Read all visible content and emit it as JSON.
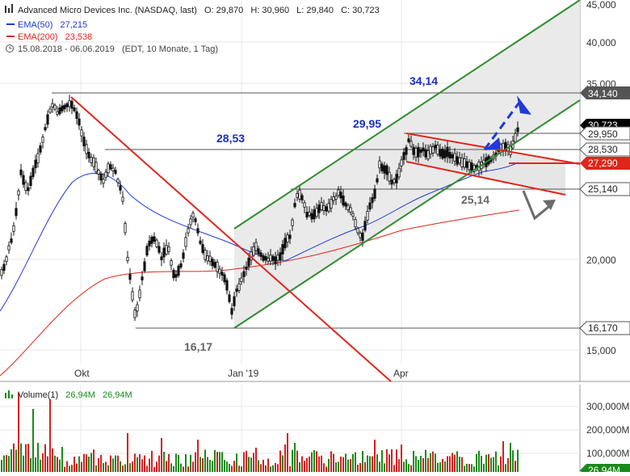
{
  "chart_data": [
    {
      "type": "candlestick",
      "header": {
        "title": "Advanced Micro Devices Inc. (NASDAQ, last)",
        "open": "O: 29,870",
        "high": "H: 30,960",
        "low": "L: 29,840",
        "close": "C: 30,723",
        "ema50_label": "EMA(50)",
        "ema50_value": "27,215",
        "ema200_label": "EMA(200)",
        "ema200_value": "23,538",
        "period": "15.08.2018 - 06.06.2019",
        "period_info": "(EDT, 10 Monate, 1 Tag)"
      },
      "y_ticks": [
        "45,000",
        "40,000",
        "35,000",
        "20,000",
        "15,000"
      ],
      "x_ticks": [
        "Okt",
        "Jan '19",
        "Apr"
      ],
      "price_tags": [
        {
          "label": "34,140",
          "value": 34.14,
          "style": "dark"
        },
        {
          "label": "30,723",
          "value": 30.723,
          "style": "black"
        },
        {
          "label": "29,950",
          "value": 29.95,
          "style": "white"
        },
        {
          "label": "28,530",
          "value": 28.53,
          "style": "white"
        },
        {
          "label": "27,290",
          "value": 27.29,
          "style": "red"
        },
        {
          "label": "25,140",
          "value": 25.14,
          "style": "white"
        },
        {
          "label": "16,170",
          "value": 16.17,
          "style": "white"
        }
      ],
      "annotations": [
        {
          "label": "34,14",
          "color": "#1a2fc2"
        },
        {
          "label": "28,53",
          "color": "#1a2fc2"
        },
        {
          "label": "29,95",
          "color": "#1a2fc2"
        },
        {
          "label": "25,14",
          "color": "#666666"
        },
        {
          "label": "16,17",
          "color": "#666666"
        }
      ],
      "colors": {
        "ema50": "#1f3ad6",
        "ema200": "#e0251b",
        "trend_red": "#e0251b",
        "channel_green": "#2f8c2f",
        "channel_fill": "#e9e9e9",
        "arrow_blue": "#1f3ad6",
        "arrow_gray": "#6b6b6b",
        "candles": "#111111"
      }
    },
    {
      "type": "bar",
      "legend_label": "Volume(1)",
      "legend_value_1": "26,94M",
      "legend_value_2": "26,94M",
      "y_ticks": [
        "300,000M",
        "200,000M",
        "100,000M"
      ],
      "last_tag": "26,94M",
      "colors": {
        "up": "#1a8a1a",
        "down": "#d42020"
      }
    }
  ]
}
